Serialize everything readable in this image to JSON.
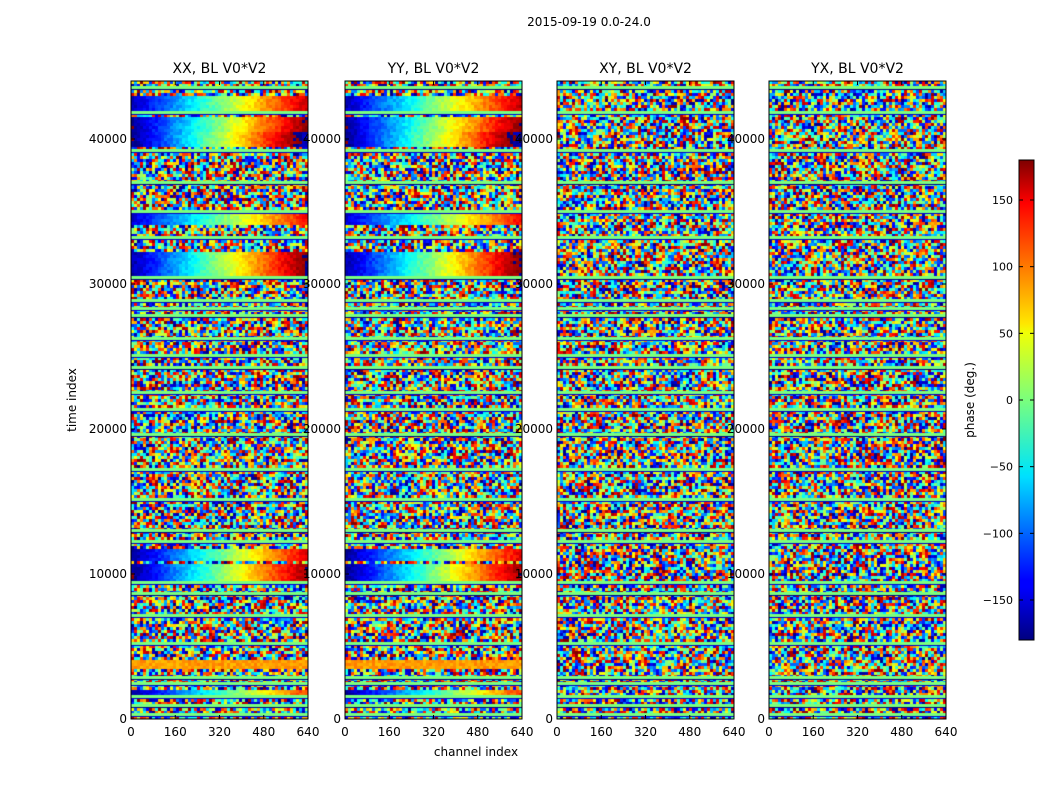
{
  "chart_data": {
    "type": "heatmap",
    "title": "2015-09-19 0.0-24.0",
    "ylabel": "time index",
    "xlabel": "channel index",
    "xlim": [
      0,
      640
    ],
    "ylim": [
      0,
      44000
    ],
    "x_ticks": [
      "0",
      "160",
      "320",
      "480",
      "640"
    ],
    "x_tick_values": [
      0,
      160,
      320,
      480,
      640
    ],
    "y_ticks": [
      "0",
      "10000",
      "20000",
      "30000",
      "40000"
    ],
    "y_tick_values": [
      0,
      10000,
      20000,
      30000,
      40000
    ],
    "panels": [
      {
        "title": "XX, BL V0*V2",
        "parallel": true
      },
      {
        "title": "YY, BL V0*V2",
        "parallel": true
      },
      {
        "title": "XY, BL V0*V2",
        "parallel": false
      },
      {
        "title": "YX, BL V0*V2",
        "parallel": false
      }
    ],
    "colorbar": {
      "label": "phase (deg.)",
      "range": [
        -180,
        180
      ],
      "ticks": [
        "150",
        "100",
        "50",
        "0",
        "−50",
        "−100",
        "−150"
      ],
      "tick_values": [
        150,
        100,
        50,
        0,
        -50,
        -100,
        -150
      ],
      "colormap": "jet"
    },
    "coherent_bands": [
      {
        "t": 42500,
        "w": 500,
        "phase0": -160,
        "slope": 0.5
      },
      {
        "t": 41000,
        "w": 600,
        "phase0": -170,
        "slope": 0.55
      },
      {
        "t": 40000,
        "w": 600,
        "phase0": -175,
        "slope": 0.6
      },
      {
        "t": 34500,
        "w": 400,
        "phase0": -150,
        "slope": 0.45
      },
      {
        "t": 31300,
        "w": 900,
        "phase0": -165,
        "slope": 0.55
      },
      {
        "t": 11300,
        "w": 500,
        "phase0": -170,
        "slope": 0.5
      },
      {
        "t": 10000,
        "w": 700,
        "phase0": -175,
        "slope": 0.55
      },
      {
        "t": 3700,
        "w": 300,
        "phase0": 80,
        "slope": 0.0
      },
      {
        "t": 1800,
        "w": 300,
        "phase0": -170,
        "slope": 0.45
      }
    ],
    "flagged_rows": [
      43500,
      41800,
      39200,
      37000,
      35000,
      33200,
      30400,
      28800,
      28300,
      27800,
      26200,
      25000,
      24200,
      22500,
      21300,
      19600,
      17200,
      15100,
      13000,
      12200,
      9400,
      8600,
      7100,
      5200,
      2800,
      2400,
      1500,
      900,
      300
    ]
  }
}
